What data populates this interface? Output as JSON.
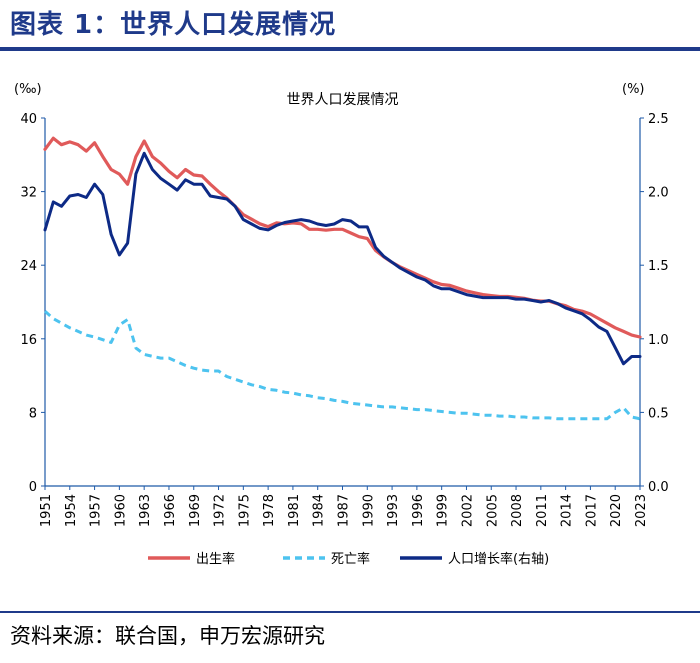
{
  "header": {
    "title": "图表 1：世界人口发展情况"
  },
  "footer": {
    "source": "资料来源：联合国，申万宏源研究"
  },
  "colors": {
    "birth": "#e05a5a",
    "death": "#4dc3ef",
    "growth": "#0d2a86",
    "brand": "#1f3a8a",
    "axis": "#1f5aa8"
  },
  "chart_data": {
    "type": "line",
    "title": "世界人口发展情况",
    "left_unit": "(‰)",
    "right_unit": "(%)",
    "left_ylim": [
      0,
      40
    ],
    "left_ticks": [
      "0",
      "8",
      "16",
      "24",
      "32",
      "40"
    ],
    "right_ylim": [
      0,
      2.5
    ],
    "right_ticks": [
      "0.0",
      "0.5",
      "1.0",
      "1.5",
      "2.0",
      "2.5"
    ],
    "x_start": 1951,
    "x_end": 2023,
    "x_ticks": [
      "1951",
      "1954",
      "1957",
      "1960",
      "1963",
      "1966",
      "1969",
      "1972",
      "1975",
      "1978",
      "1981",
      "1984",
      "1987",
      "1990",
      "1993",
      "1996",
      "1999",
      "2002",
      "2005",
      "2008",
      "2011",
      "2014",
      "2017",
      "2020",
      "2023"
    ],
    "legend": [
      "出生率",
      "死亡率",
      "人口增长率(右轴)"
    ],
    "series": [
      {
        "name": "出生率",
        "axis": "left",
        "style": "solid",
        "values": [
          36.6,
          37.8,
          37.1,
          37.4,
          37.1,
          36.4,
          37.3,
          35.8,
          34.4,
          33.9,
          32.8,
          35.8,
          37.5,
          35.8,
          35.1,
          34.2,
          33.5,
          34.4,
          33.8,
          33.7,
          32.8,
          32.0,
          31.3,
          30.4,
          29.5,
          29.0,
          28.5,
          28.2,
          28.6,
          28.5,
          28.6,
          28.5,
          27.9,
          27.9,
          27.8,
          27.9,
          27.9,
          27.5,
          27.1,
          26.9,
          25.6,
          24.9,
          24.3,
          23.8,
          23.4,
          23.0,
          22.6,
          22.2,
          21.9,
          21.8,
          21.5,
          21.2,
          21.0,
          20.8,
          20.7,
          20.6,
          20.6,
          20.5,
          20.4,
          20.2,
          20.1,
          20.1,
          19.8,
          19.6,
          19.2,
          19.0,
          18.7,
          18.2,
          17.7,
          17.2,
          16.8,
          16.4,
          16.2
        ]
      },
      {
        "name": "死亡率",
        "axis": "left",
        "style": "dashed",
        "values": [
          19.0,
          18.2,
          17.7,
          17.2,
          16.8,
          16.4,
          16.2,
          15.9,
          15.6,
          17.5,
          18.1,
          15.0,
          14.3,
          14.1,
          13.9,
          13.9,
          13.5,
          13.1,
          12.8,
          12.6,
          12.5,
          12.5,
          11.9,
          11.6,
          11.3,
          11.0,
          10.8,
          10.5,
          10.4,
          10.2,
          10.1,
          9.9,
          9.8,
          9.6,
          9.5,
          9.3,
          9.2,
          9.0,
          8.9,
          8.8,
          8.7,
          8.6,
          8.6,
          8.5,
          8.4,
          8.3,
          8.3,
          8.2,
          8.1,
          8.0,
          7.9,
          7.9,
          7.8,
          7.7,
          7.7,
          7.6,
          7.6,
          7.5,
          7.5,
          7.4,
          7.4,
          7.4,
          7.3,
          7.3,
          7.3,
          7.3,
          7.3,
          7.3,
          7.3,
          8.0,
          8.5,
          7.5,
          7.3
        ]
      },
      {
        "name": "人口增长率(右轴)",
        "axis": "right",
        "style": "solid",
        "values": [
          1.74,
          1.93,
          1.9,
          1.97,
          1.98,
          1.96,
          2.05,
          1.98,
          1.71,
          1.57,
          1.65,
          2.12,
          2.26,
          2.15,
          2.09,
          2.05,
          2.01,
          2.08,
          2.05,
          2.05,
          1.97,
          1.96,
          1.95,
          1.9,
          1.81,
          1.78,
          1.75,
          1.74,
          1.77,
          1.79,
          1.8,
          1.81,
          1.8,
          1.78,
          1.77,
          1.78,
          1.81,
          1.8,
          1.76,
          1.76,
          1.62,
          1.56,
          1.52,
          1.48,
          1.45,
          1.42,
          1.4,
          1.36,
          1.34,
          1.34,
          1.32,
          1.3,
          1.29,
          1.28,
          1.28,
          1.28,
          1.28,
          1.27,
          1.27,
          1.26,
          1.25,
          1.26,
          1.24,
          1.21,
          1.19,
          1.17,
          1.13,
          1.08,
          1.05,
          0.94,
          0.83,
          0.88,
          0.88
        ]
      }
    ]
  }
}
